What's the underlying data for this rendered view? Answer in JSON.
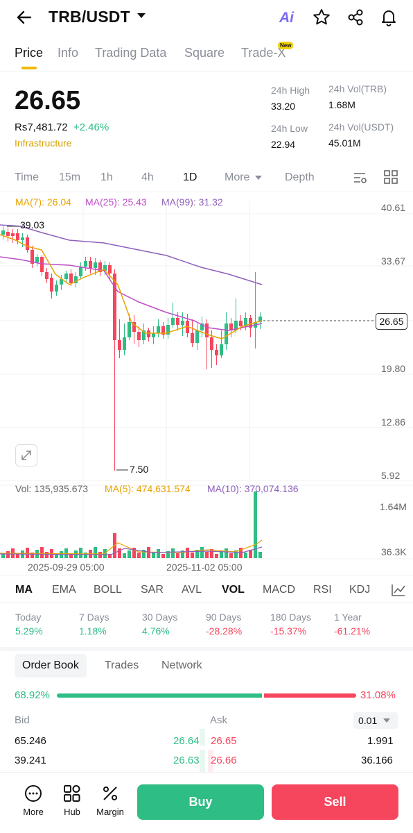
{
  "header": {
    "pair": "TRB/USDT",
    "ai_label": "Ai"
  },
  "tabs": [
    {
      "label": "Price"
    },
    {
      "label": "Info"
    },
    {
      "label": "Trading Data"
    },
    {
      "label": "Square"
    },
    {
      "label": "Trade-X"
    }
  ],
  "new_badge": "New",
  "price": {
    "last": "26.65",
    "fiat": "Rs7,481.72",
    "change": "+2.46%",
    "sector": "Infrastructure",
    "high_label": "24h High",
    "high": "33.20",
    "low_label": "24h Low",
    "low": "22.94",
    "vol_base_label": "24h Vol(TRB)",
    "vol_base": "1.68M",
    "vol_quote_label": "24h Vol(USDT)",
    "vol_quote": "45.01M"
  },
  "timeframes": [
    "Time",
    "15m",
    "1h",
    "4h",
    "1D",
    "More",
    "Depth"
  ],
  "active_timeframe": "1D",
  "ma": {
    "ma7": "MA(7): 26.04",
    "ma25": "MA(25): 25.43",
    "ma99": "MA(99): 31.32"
  },
  "price_axis": [
    "40.61",
    "33.67",
    "26.65",
    "19.80",
    "12.86",
    "5.92"
  ],
  "annotations": {
    "high": "39.03",
    "low": "7.50"
  },
  "volume": {
    "vol": "Vol: 135,935.673",
    "ma5": "MA(5): 474,631.574",
    "ma10": "MA(10): 370,074.136"
  },
  "volume_axis": [
    "1.64M",
    "36.3K"
  ],
  "dates": [
    "2025-09-29 05:00",
    "2025-11-02 05:00"
  ],
  "indicators": [
    "MA",
    "EMA",
    "BOLL",
    "SAR",
    "AVL",
    "VOL",
    "MACD",
    "RSI",
    "KDJ"
  ],
  "performance": [
    {
      "label": "Today",
      "value": "5.29%"
    },
    {
      "label": "7 Days",
      "value": "1.18%"
    },
    {
      "label": "30 Days",
      "value": "4.76%"
    },
    {
      "label": "90 Days",
      "value": "-28.28%"
    },
    {
      "label": "180 Days",
      "value": "-15.37%"
    },
    {
      "label": "1 Year",
      "value": "-61.21%"
    }
  ],
  "orderbook": {
    "tabs": [
      "Order Book",
      "Trades",
      "Network"
    ],
    "bid_pct": "68.92%",
    "ask_pct": "31.08%",
    "bid_label": "Bid",
    "ask_label": "Ask",
    "precision": "0.01",
    "rows": [
      {
        "bid_qty": "65.246",
        "bid_price": "26.64",
        "ask_price": "26.65",
        "ask_qty": "1.991"
      },
      {
        "bid_qty": "39.241",
        "bid_price": "26.63",
        "ask_price": "26.66",
        "ask_qty": "36.166"
      }
    ]
  },
  "bottom_nav": [
    {
      "label": "More"
    },
    {
      "label": "Hub"
    },
    {
      "label": "Margin"
    }
  ],
  "actions": {
    "buy": "Buy",
    "sell": "Sell"
  },
  "colors": {
    "up": "#2ebd85",
    "down": "#f6465d",
    "accent": "#f0b90b",
    "ma7": "#e8a300",
    "ma25": "#c04fc6",
    "ma99": "#8e5fbd"
  }
}
